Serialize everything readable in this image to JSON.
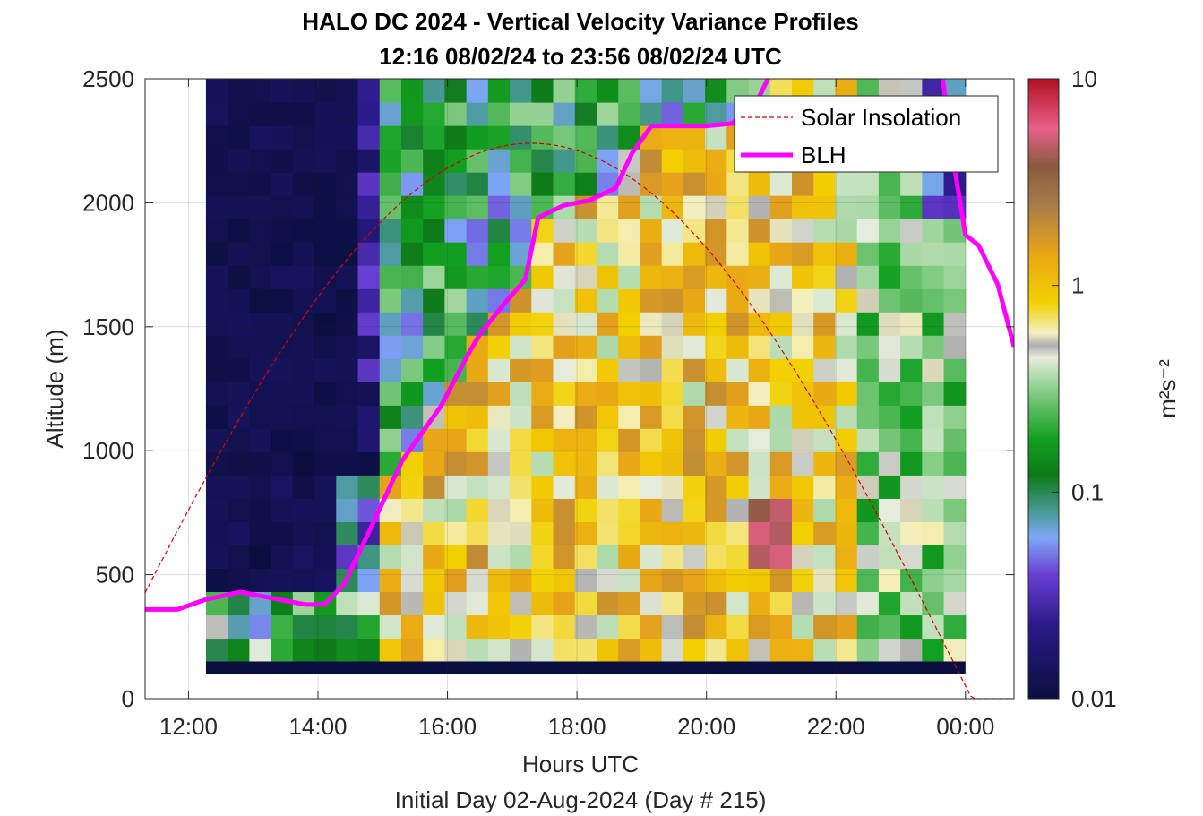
{
  "chart_data": {
    "type": "heatmap",
    "title_line1": "HALO DC 2024 - Vertical Velocity Variance Profiles",
    "title_line2": "12:16 08/02/24 to 23:56 08/02/24  UTC",
    "xlabel": "Hours UTC",
    "subxlabel": "Initial Day 02-Aug-2024 (Day # 215)",
    "ylabel": "Altitude (m)",
    "colorbar_label": "m²s⁻²",
    "xlim": [
      11.33,
      24.75
    ],
    "ylim": [
      0,
      2500
    ],
    "x_ticks": [
      12,
      14,
      16,
      18,
      20,
      22,
      24
    ],
    "x_tick_labels": [
      "12:00",
      "14:00",
      "16:00",
      "18:00",
      "20:00",
      "22:00",
      "00:00"
    ],
    "y_ticks": [
      0,
      500,
      1000,
      1500,
      2000,
      2500
    ],
    "y_tick_labels": [
      "0",
      "500",
      "1000",
      "1500",
      "2000",
      "2500"
    ],
    "colorbar_ticks": [
      0.01,
      0.1,
      1,
      10
    ],
    "colorbar_tick_labels": [
      "0.01",
      "0.1",
      "1",
      "10"
    ],
    "colorbar_scale": "log",
    "grid": true,
    "legend_position": "top-right",
    "legend": [
      {
        "name": "Solar Insolation",
        "color": "#d40000",
        "style": "dashed"
      },
      {
        "name": "BLH",
        "color": "#ff00ff",
        "style": "solid"
      }
    ],
    "heatmap": {
      "x_start": 12.27,
      "x_end": 24.0,
      "y_start": 150,
      "y_end": 2500,
      "x_bins": 35,
      "y_bins": 25,
      "bottom_band_value": 0.01,
      "description_note_free": true
    },
    "blh": {
      "name": "BLH",
      "x": [
        11.33,
        11.83,
        12.27,
        12.8,
        13.4,
        13.8,
        14.1,
        14.4,
        14.8,
        15.3,
        15.9,
        16.3,
        16.5,
        16.9,
        17.2,
        17.4,
        17.8,
        18.2,
        18.6,
        18.85,
        19.15,
        19.5,
        20.0,
        20.4,
        20.8,
        20.95
      ],
      "y": [
        360,
        360,
        400,
        430,
        400,
        380,
        380,
        460,
        680,
        960,
        1180,
        1380,
        1470,
        1600,
        1690,
        1940,
        1990,
        2010,
        2060,
        2200,
        2310,
        2310,
        2310,
        2320,
        2420,
        2500
      ]
    },
    "blh_late": {
      "x": [
        23.65,
        23.8,
        24.0,
        24.2,
        24.5,
        24.75
      ],
      "y": [
        2500,
        2190,
        1870,
        1830,
        1670,
        1420
      ]
    },
    "solar": {
      "name": "Solar Insolation",
      "peak_hour": 17.3,
      "peak_altitude": 2240,
      "half_width_hours": 6.8
    }
  }
}
